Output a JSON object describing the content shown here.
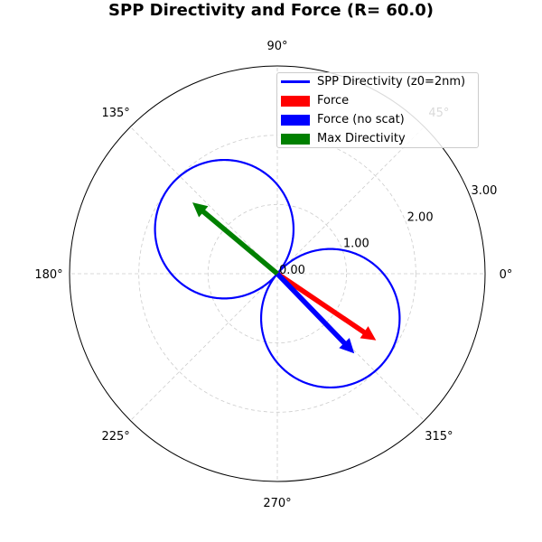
{
  "chart_data": {
    "type": "polar",
    "title": "SPP Directivity and Force (R= 60.0)",
    "theta_ticks": [
      "0°",
      "45°",
      "90°",
      "135°",
      "180°",
      "225°",
      "270°",
      "315°"
    ],
    "r_ticks": [
      "0.00",
      "1.00",
      "2.00",
      "3.00"
    ],
    "r_tick_values": [
      0,
      1,
      2,
      3
    ],
    "rlim": [
      0,
      3.0
    ],
    "grid": true,
    "legend_position": "top-right",
    "series": [
      {
        "name": "SPP Directivity (z0=2nm)",
        "kind": "line",
        "color": "#0000ff",
        "function": "r = 2.0 * |cos(theta - 140°)|",
        "peak_r": 2.0,
        "axis_angle_deg": 140
      },
      {
        "name": "Force",
        "kind": "arrow",
        "color": "#ff0000",
        "angle_deg": -34,
        "r": 1.72
      },
      {
        "name": "Force (no scat)",
        "kind": "arrow",
        "color": "#0000ff",
        "angle_deg": -46,
        "r": 1.6
      },
      {
        "name": "Max Directivity",
        "kind": "arrow",
        "color": "#008000",
        "angle_deg": 140,
        "r": 1.6
      }
    ]
  }
}
